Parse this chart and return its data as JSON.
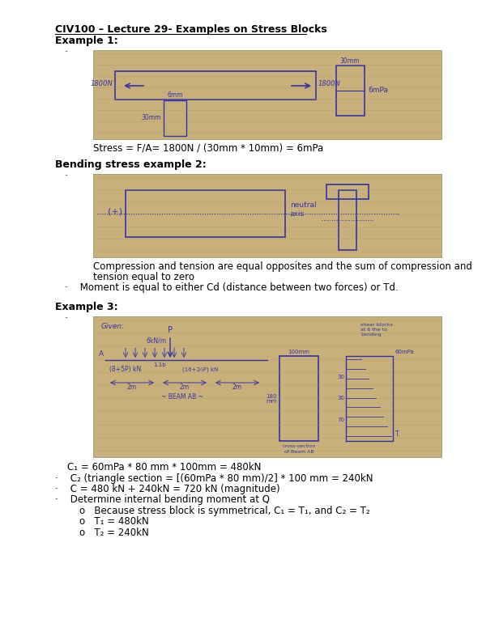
{
  "title": "CIV100 – Lecture 29- Examples on Stress Blocks",
  "title_fontsize": 9,
  "bg_color": "#ffffff",
  "image_bg": "#c8b07a",
  "text_color": "#000000",
  "ink_color": "#3333aa",
  "line_color": "#b09060",
  "sections": [
    {
      "header": "Example 1:",
      "stress_text": "Stress = F/A= 1800N / (30mm * 10mm) = 6mPa"
    },
    {
      "header": "Bending stress example 2:",
      "lines": [
        "Compression and tension are equal opposites and the sum of compression and",
        "tension equal to zero",
        "·    Moment is equal to either Cd (distance between two forces) or Td."
      ]
    },
    {
      "header": "Example 3:",
      "lines": [
        "    C₁ = 60mPa * 80 mm * 100mm = 480kN",
        "·    C₂ (triangle section = [(60mPa * 80 mm)/2] * 100 mm = 240kN",
        "·    C = 480 kN + 240kN = 720 kN (magnitude)",
        "·    Determine internal bending moment at Q",
        "        o   Because stress block is symmetrical, C₁ = T₁, and C₂ = T₂",
        "        o   T₁ = 480kN",
        "        o   T₂ = 240kN"
      ]
    }
  ]
}
